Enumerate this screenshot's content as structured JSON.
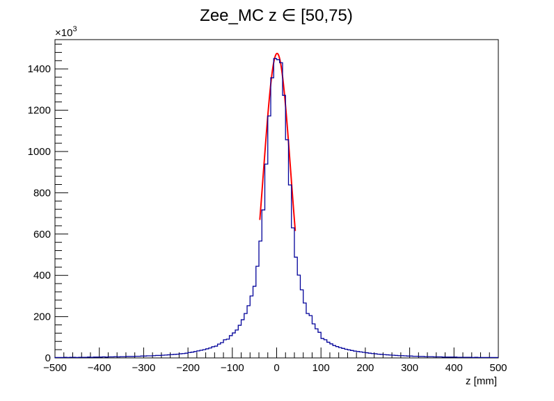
{
  "chart_data": {
    "type": "bar",
    "title": "Zee_MC z ∈ [50,75)",
    "xlabel": "z [mm]",
    "ylabel": "",
    "y_multiplier": "×10",
    "y_multiplier_exp": "3",
    "xlim": [
      -500,
      500
    ],
    "ylim": [
      0,
      1542
    ],
    "xticks": [
      -500,
      -400,
      -300,
      -200,
      -100,
      0,
      100,
      200,
      300,
      400,
      500
    ],
    "xtick_labels": [
      "−500",
      "−400",
      "−300",
      "−200",
      "−100",
      "0",
      "100",
      "200",
      "300",
      "400",
      "500"
    ],
    "yticks": [
      0,
      200,
      400,
      600,
      800,
      1000,
      1200,
      1400
    ],
    "ytick_labels": [
      "0",
      "200",
      "400",
      "600",
      "800",
      "1000",
      "1200",
      "1400"
    ],
    "grid": false,
    "bin_width": 6.667,
    "series": [
      {
        "kind": "histogram",
        "color": "#000099",
        "values": [
          2,
          2,
          2,
          3,
          2,
          3,
          3,
          2,
          3,
          3,
          3,
          4,
          3,
          4,
          4,
          4,
          5,
          4,
          5,
          5,
          6,
          5,
          6,
          6,
          7,
          7,
          7,
          8,
          8,
          9,
          9,
          10,
          10,
          11,
          12,
          12,
          13,
          14,
          15,
          16,
          17,
          18,
          20,
          21,
          23,
          26,
          28,
          31,
          34,
          37,
          40,
          44,
          48,
          54,
          57,
          67,
          74,
          88,
          91,
          108,
          121,
          135,
          158,
          185,
          215,
          253,
          300,
          347,
          444,
          566,
          717,
          939,
          1172,
          1357,
          1450,
          1445,
          1430,
          1272,
          1057,
          838,
          630,
          488,
          401,
          330,
          266,
          215,
          205,
          165,
          141,
          124,
          94,
          88,
          76,
          68,
          60,
          55,
          50,
          46,
          42,
          39,
          36,
          33,
          31,
          29,
          27,
          25,
          23,
          21,
          20,
          18,
          17,
          16,
          15,
          14,
          13,
          12,
          11,
          11,
          10,
          9,
          9,
          8,
          8,
          7,
          7,
          6,
          6,
          6,
          5,
          5,
          5,
          4,
          4,
          4,
          4,
          4,
          3,
          3,
          3,
          3,
          3,
          2,
          3,
          2,
          2,
          2,
          2,
          2,
          2,
          2
        ]
      },
      {
        "kind": "fit-gaussian",
        "color": "#ff0000",
        "amplitude": 1475,
        "mean": 1,
        "sigma": 31,
        "range": [
          -38,
          42
        ]
      }
    ]
  }
}
